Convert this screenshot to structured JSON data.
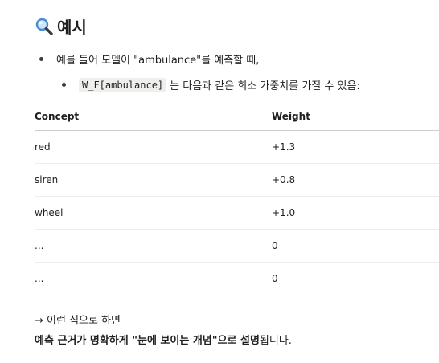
{
  "heading": {
    "icon": "magnifying-glass-icon",
    "title": "예시"
  },
  "bullet_1": {
    "text": "예를 들어 모델이 \"ambulance\"를 예측할 때,"
  },
  "bullet_2": {
    "code": "W_F[ambulance]",
    "text": "는 다음과 같은 희소 가중치를 가질 수 있음:"
  },
  "table": {
    "headers": [
      "Concept",
      "Weight"
    ],
    "rows": [
      [
        "red",
        "+1.3"
      ],
      [
        "siren",
        "+0.8"
      ],
      [
        "wheel",
        "+1.0"
      ],
      [
        "...",
        "0"
      ],
      [
        "...",
        "0"
      ]
    ]
  },
  "notes": {
    "line_1": "→ 이런 식으로 하면",
    "line_2_bold_a": "예측 근거가 명확하게 \"눈에 보이는 개념\"으로 설명",
    "line_2_rest": "됩니다."
  },
  "colors": {
    "text": "#1f1f1f",
    "code_bg": "#efefed",
    "header_rule": "#cfcfcf",
    "row_rule": "#ececec",
    "lens_blue": "#4a8bd6"
  }
}
